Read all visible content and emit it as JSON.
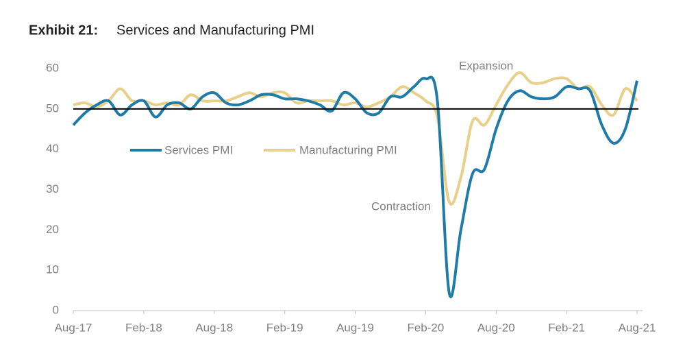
{
  "chart_data": {
    "type": "line",
    "title_label": "Exhibit 21:",
    "title": "Services and Manufacturing PMI",
    "categories": [
      "Aug-17",
      null,
      null,
      null,
      null,
      null,
      "Feb-18",
      null,
      null,
      null,
      null,
      null,
      "Aug-18",
      null,
      null,
      null,
      null,
      null,
      "Feb-19",
      null,
      null,
      null,
      null,
      null,
      "Aug-19",
      null,
      null,
      null,
      null,
      null,
      "Feb-20",
      null,
      null,
      null,
      null,
      null,
      "Aug-20",
      null,
      null,
      null,
      null,
      null,
      "Feb-21",
      null,
      null,
      null,
      null,
      null,
      "Aug-21"
    ],
    "series": [
      {
        "name": "Services PMI",
        "color": "#1f7ba8",
        "values": [
          46,
          49,
          51,
          52,
          48.5,
          51,
          52,
          48,
          51,
          51.5,
          50,
          53,
          54,
          51.5,
          51,
          52,
          53.5,
          53.5,
          52.5,
          52.5,
          52,
          51,
          49.5,
          54,
          52.5,
          49,
          49,
          53,
          53,
          55.5,
          57.5,
          52,
          4.5,
          20,
          34,
          35,
          45,
          52,
          54.5,
          53,
          52.5,
          53,
          55.5,
          55,
          54.5,
          46,
          41.5,
          45,
          57
        ]
      },
      {
        "name": "Manufacturing PMI",
        "color": "#e8cf8a",
        "values": [
          51,
          51.5,
          50.5,
          52,
          55,
          52,
          52,
          51,
          51.5,
          51,
          53.5,
          52,
          52,
          52,
          53,
          54,
          53,
          54,
          54,
          51.5,
          52,
          52,
          52,
          51,
          51.5,
          50.5,
          51.5,
          53,
          55.5,
          54,
          52,
          48,
          27,
          33,
          47,
          46,
          51,
          56,
          59,
          56.5,
          56.5,
          57.5,
          57.5,
          55,
          55.5,
          51,
          48.5,
          55,
          52
        ]
      }
    ],
    "reference_line": 50,
    "annotations": [
      "Expansion",
      "Contraction"
    ],
    "ylim": [
      0,
      60
    ],
    "yticks": [
      0,
      10,
      20,
      30,
      40,
      50,
      60
    ]
  }
}
